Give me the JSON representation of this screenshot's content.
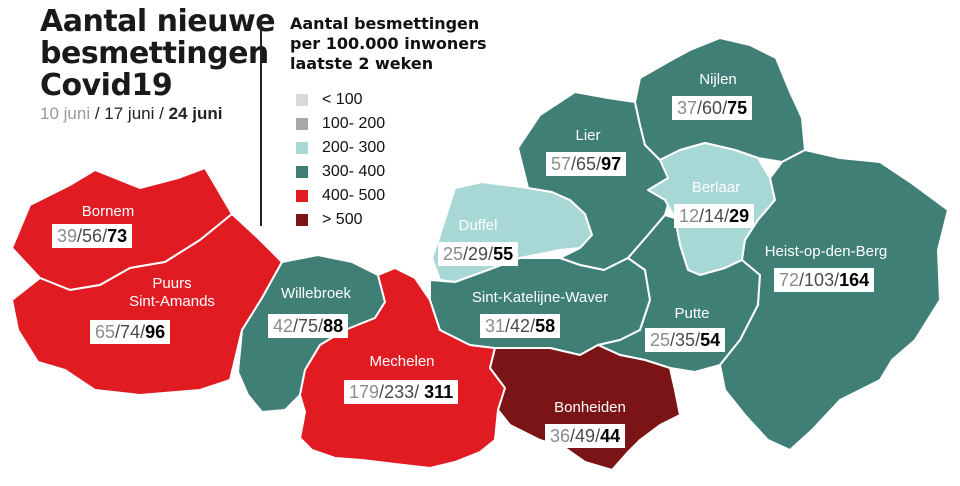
{
  "header": {
    "title_lines": [
      "Aantal nieuwe",
      "besmettingen",
      "Covid19"
    ],
    "dates": [
      {
        "label": "10 juni",
        "sep": " /"
      },
      {
        "label": "17 juni",
        "sep": " /"
      },
      {
        "label": "24 juni",
        "sep": ""
      }
    ]
  },
  "legend": {
    "title_lines": [
      "Aantal besmettingen",
      "per 100.000 inwoners",
      "laatste 2 weken"
    ],
    "items": [
      {
        "label": "< 100",
        "color": "#d9d9d9"
      },
      {
        "label": "100- 200",
        "color": "#a8a8a8"
      },
      {
        "label": "200- 300",
        "color": "#a8d8d6"
      },
      {
        "label": "300- 400",
        "color": "#3f7f76"
      },
      {
        "label": "400- 500",
        "color": "#e01b22"
      },
      {
        "label": "> 500",
        "color": "#7a1416"
      }
    ]
  },
  "colors": {
    "teal": "#3f7f76",
    "light_teal": "#a8d8d6",
    "red": "#e01b22",
    "dark_red": "#7a1416"
  },
  "municipalities": [
    {
      "name_lines": [
        "Nijlen"
      ],
      "v10": "37",
      "v17": "60",
      "v24": "75"
    },
    {
      "name_lines": [
        "Lier"
      ],
      "v10": "57",
      "v17": "65",
      "v24": "97"
    },
    {
      "name_lines": [
        "Berlaar"
      ],
      "v10": "12",
      "v17": "14",
      "v24": "29"
    },
    {
      "name_lines": [
        "Duffel"
      ],
      "v10": "25",
      "v17": "29",
      "v24": "55"
    },
    {
      "name_lines": [
        "Bornem"
      ],
      "v10": "39",
      "v17": "56",
      "v24": "73"
    },
    {
      "name_lines": [
        "Puurs",
        "Sint-Amands"
      ],
      "v10": "65",
      "v17": "74",
      "v24": "96"
    },
    {
      "name_lines": [
        "Willebroek"
      ],
      "v10": "42",
      "v17": "75",
      "v24": "88"
    },
    {
      "name_lines": [
        "Mechelen"
      ],
      "v10": "179",
      "v17": "233",
      "v24": "311"
    },
    {
      "name_lines": [
        "Sint-Katelijne-Waver"
      ],
      "v10": "31",
      "v17": "42",
      "v24": "58"
    },
    {
      "name_lines": [
        "Putte"
      ],
      "v10": "25",
      "v17": "35",
      "v24": "54"
    },
    {
      "name_lines": [
        "Heist-op-den-Berg"
      ],
      "v10": "72",
      "v17": "103",
      "v24": "164"
    },
    {
      "name_lines": [
        "Bonheiden"
      ],
      "v10": "36",
      "v17": "49",
      "v24": "44"
    }
  ]
}
